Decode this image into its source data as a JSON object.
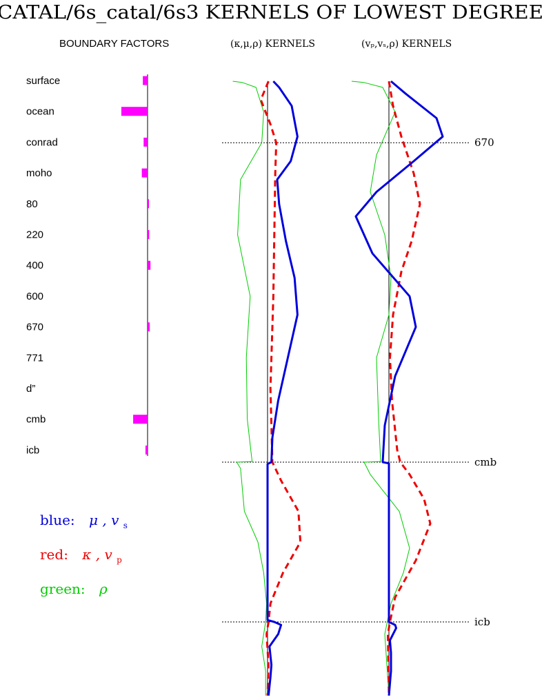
{
  "chart_data": {
    "type": "line",
    "title": "CATAL/6s_catal/6s3 KERNELS OF LOWEST DEGREE",
    "boundary_factors": {
      "heading": "BOUNDARY FACTORS",
      "color": "#ff00ff",
      "items": [
        {
          "label": "surface",
          "value": -0.18
        },
        {
          "label": "ocean",
          "value": -1.0
        },
        {
          "label": "conrad",
          "value": -0.15
        },
        {
          "label": "moho",
          "value": -0.22
        },
        {
          "label": "80",
          "value": 0.02
        },
        {
          "label": "220",
          "value": 0.06
        },
        {
          "label": "400",
          "value": 0.11
        },
        {
          "label": "600",
          "value": 0.0
        },
        {
          "label": "670",
          "value": 0.08
        },
        {
          "label": "771",
          "value": 0.0
        },
        {
          "label": "d”",
          "value": 0.0
        },
        {
          "label": "cmb",
          "value": -0.55
        },
        {
          "label": "icb",
          "value": -0.08
        }
      ]
    },
    "panels": [
      {
        "title": "(κ,μ,ρ) KERNELS",
        "series": [
          {
            "key": "blue",
            "color": "#0000dd",
            "values": [
              [
                0,
                0.3
              ],
              [
                0.01,
                0.6
              ],
              [
                0.04,
                1.25
              ],
              [
                0.09,
                1.55
              ],
              [
                0.13,
                1.2
              ],
              [
                0.16,
                0.5
              ],
              [
                0.2,
                0.6
              ],
              [
                0.26,
                0.95
              ],
              [
                0.32,
                1.4
              ],
              [
                0.38,
                1.55
              ],
              [
                0.45,
                1.05
              ],
              [
                0.52,
                0.55
              ],
              [
                0.58,
                0.25
              ],
              [
                0.62,
                0.2
              ],
              [
                0.623,
                0.0
              ],
              [
                0.877,
                0.0
              ],
              [
                0.88,
                0.35
              ],
              [
                0.885,
                0.7
              ],
              [
                0.9,
                0.55
              ],
              [
                0.92,
                0.1
              ],
              [
                0.95,
                0.2
              ],
              [
                0.97,
                0.15
              ],
              [
                1.0,
                0.05
              ]
            ]
          },
          {
            "key": "red",
            "color": "#ee0000",
            "values": [
              [
                0,
                0.05
              ],
              [
                0.03,
                -0.35
              ],
              [
                0.07,
                0.15
              ],
              [
                0.1,
                0.45
              ],
              [
                0.15,
                0.4
              ],
              [
                0.25,
                0.35
              ],
              [
                0.35,
                0.3
              ],
              [
                0.5,
                0.15
              ],
              [
                0.62,
                0.25
              ],
              [
                0.65,
                0.7
              ],
              [
                0.7,
                1.6
              ],
              [
                0.75,
                1.7
              ],
              [
                0.8,
                0.8
              ],
              [
                0.85,
                0.15
              ],
              [
                0.88,
                0.05
              ],
              [
                0.9,
                -0.05
              ],
              [
                0.95,
                0.05
              ],
              [
                1.0,
                0.0
              ]
            ]
          },
          {
            "key": "green",
            "color": "#00cc00",
            "values": [
              [
                0,
                -1.8
              ],
              [
                0.002,
                -1.3
              ],
              [
                0.01,
                -0.6
              ],
              [
                0.05,
                -0.2
              ],
              [
                0.1,
                -0.3
              ],
              [
                0.16,
                -1.4
              ],
              [
                0.25,
                -1.55
              ],
              [
                0.35,
                -0.9
              ],
              [
                0.45,
                -1.1
              ],
              [
                0.55,
                -1.05
              ],
              [
                0.619,
                -0.8
              ],
              [
                0.62,
                -1.6
              ],
              [
                0.63,
                -1.4
              ],
              [
                0.7,
                -1.2
              ],
              [
                0.75,
                -0.5
              ],
              [
                0.8,
                -0.2
              ],
              [
                0.85,
                -0.05
              ],
              [
                0.88,
                -0.1
              ],
              [
                0.92,
                -0.3
              ],
              [
                0.96,
                -0.1
              ],
              [
                1.0,
                -0.1
              ]
            ]
          }
        ]
      },
      {
        "title": "(vₚ,vₛ,ρ) KERNELS",
        "series": [
          {
            "key": "blue",
            "color": "#0000dd",
            "values": [
              [
                0,
                0.1
              ],
              [
                0.02,
                0.8
              ],
              [
                0.06,
                2.3
              ],
              [
                0.09,
                2.6
              ],
              [
                0.13,
                1.2
              ],
              [
                0.18,
                -0.6
              ],
              [
                0.22,
                -1.6
              ],
              [
                0.28,
                -0.8
              ],
              [
                0.35,
                1.0
              ],
              [
                0.4,
                1.3
              ],
              [
                0.48,
                0.3
              ],
              [
                0.56,
                -0.2
              ],
              [
                0.62,
                -0.3
              ],
              [
                0.622,
                0.0
              ],
              [
                0.88,
                0.0
              ],
              [
                0.885,
                0.3
              ],
              [
                0.89,
                0.35
              ],
              [
                0.91,
                0.05
              ],
              [
                0.93,
                0.1
              ],
              [
                0.96,
                0.1
              ],
              [
                1.0,
                0.0
              ]
            ]
          },
          {
            "key": "red",
            "color": "#ee0000",
            "values": [
              [
                0,
                0.0
              ],
              [
                0.04,
                0.2
              ],
              [
                0.09,
                0.6
              ],
              [
                0.15,
                1.2
              ],
              [
                0.2,
                1.5
              ],
              [
                0.26,
                1.1
              ],
              [
                0.31,
                0.6
              ],
              [
                0.38,
                0.2
              ],
              [
                0.45,
                0.05
              ],
              [
                0.52,
                0.15
              ],
              [
                0.6,
                0.4
              ],
              [
                0.62,
                0.55
              ],
              [
                0.64,
                1.0
              ],
              [
                0.68,
                1.7
              ],
              [
                0.72,
                2.0
              ],
              [
                0.78,
                1.3
              ],
              [
                0.84,
                0.3
              ],
              [
                0.88,
                0.05
              ],
              [
                0.9,
                -0.05
              ],
              [
                1.0,
                0.0
              ]
            ]
          },
          {
            "key": "green",
            "color": "#00cc00",
            "values": [
              [
                0,
                -1.8
              ],
              [
                0.002,
                -1.2
              ],
              [
                0.01,
                -0.3
              ],
              [
                0.05,
                0.3
              ],
              [
                0.12,
                -0.6
              ],
              [
                0.18,
                -0.9
              ],
              [
                0.25,
                -0.2
              ],
              [
                0.32,
                0.1
              ],
              [
                0.38,
                0.0
              ],
              [
                0.45,
                -0.6
              ],
              [
                0.55,
                -0.5
              ],
              [
                0.619,
                -0.4
              ],
              [
                0.62,
                -1.2
              ],
              [
                0.64,
                -0.9
              ],
              [
                0.7,
                0.5
              ],
              [
                0.76,
                1.0
              ],
              [
                0.8,
                0.7
              ],
              [
                0.85,
                0.1
              ],
              [
                0.9,
                -0.2
              ],
              [
                0.95,
                -0.1
              ],
              [
                1.0,
                0.0
              ]
            ]
          }
        ]
      }
    ],
    "depth_axis": {
      "orientation": "top-to-bottom",
      "range": [
        0,
        1
      ],
      "lines": [
        {
          "label": "670",
          "at": 0.1
        },
        {
          "label": "cmb",
          "at": 0.62
        },
        {
          "label": "icb",
          "at": 0.88
        }
      ]
    },
    "legend": {
      "placement": "bottom-left",
      "entries": [
        {
          "color_word": "blue:",
          "symbols": "μ , v",
          "sub": "s",
          "color": "#0000dd"
        },
        {
          "color_word": "red:",
          "symbols": "κ , v",
          "sub": "p",
          "color": "#ee0000"
        },
        {
          "color_word": "green:",
          "symbols": "ρ",
          "sub": "",
          "color": "#00cc00"
        }
      ]
    },
    "grid": false
  }
}
